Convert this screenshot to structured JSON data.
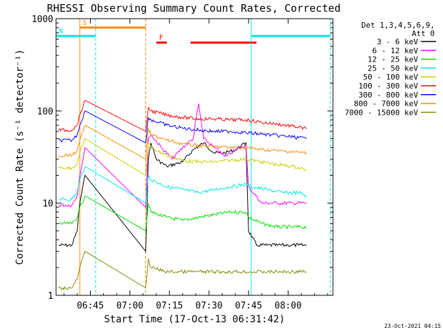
{
  "chart_data": {
    "type": "line",
    "title": "RHESSI Observing Summary Count Rates, Corrected",
    "xlabel": "Start Time (17-Oct-13 06:31:42)",
    "ylabel": "Corrected Count Rate (s⁻¹ detector⁻¹)",
    "yscale": "log",
    "ylim": [
      1,
      1000
    ],
    "xlim_minutes_utc": [
      392,
      497
    ],
    "x_ticks": [
      {
        "label": "06:45",
        "t": 405
      },
      {
        "label": "07:00",
        "t": 420
      },
      {
        "label": "07:15",
        "t": 435
      },
      {
        "label": "07:30",
        "t": 450
      },
      {
        "label": "07:45",
        "t": 465
      },
      {
        "label": "08:00",
        "t": 480
      }
    ],
    "y_ticks": [
      {
        "label": "1",
        "v": 1
      },
      {
        "label": "10",
        "v": 10
      },
      {
        "label": "100",
        "v": 100
      },
      {
        "label": "1000",
        "v": 1000
      }
    ],
    "legend_header": [
      "Det 1,3,4,5,6,9,",
      "Att 0"
    ],
    "series": [
      {
        "name": "3 - 6 keV",
        "color": "#000000",
        "t": [
          393,
          398,
          400,
          401,
          403,
          426,
          427,
          428,
          430,
          434,
          440,
          444,
          448,
          452,
          456,
          460,
          464,
          465,
          468,
          472,
          476,
          480,
          484,
          487
        ],
        "values": [
          3.5,
          3.5,
          5,
          10,
          20,
          3,
          30,
          45,
          30,
          25,
          28,
          38,
          45,
          35,
          35,
          38,
          45,
          5,
          3.5,
          3.5,
          3.5,
          3.5,
          3.5,
          3.5
        ]
      },
      {
        "name": "6 - 12 keV",
        "color": "#ff00ff",
        "t": [
          393,
          398,
          400,
          401,
          403,
          426,
          427,
          428,
          432,
          436,
          440,
          444,
          446,
          448,
          452,
          456,
          460,
          464,
          465,
          470,
          476,
          482,
          487
        ],
        "values": [
          9.5,
          9.5,
          12,
          20,
          40,
          9,
          50,
          55,
          40,
          30,
          40,
          50,
          120,
          50,
          40,
          32,
          38,
          42,
          15,
          10,
          10,
          10,
          10
        ]
      },
      {
        "name": "12 - 25 keV",
        "color": "#00dd00",
        "t": [
          393,
          398,
          400,
          401,
          403,
          426,
          427,
          428,
          434,
          440,
          446,
          452,
          458,
          464,
          465,
          470,
          476,
          482,
          487
        ],
        "values": [
          6,
          6,
          7,
          9,
          12,
          5,
          10,
          8,
          7,
          6.5,
          7,
          7.5,
          8,
          8,
          7,
          6,
          5.5,
          5.5,
          5.5
        ]
      },
      {
        "name": "25 - 50 keV",
        "color": "#00e5e5",
        "t": [
          393,
          398,
          400,
          401,
          403,
          426,
          427,
          428,
          434,
          440,
          446,
          452,
          458,
          464,
          466,
          472,
          478,
          484,
          487
        ],
        "values": [
          11,
          11,
          13,
          18,
          25,
          10,
          20,
          18,
          15,
          14,
          13,
          14,
          15,
          16,
          15,
          14,
          13,
          13,
          12
        ]
      },
      {
        "name": "50 - 100 keV",
        "color": "#cccc00",
        "t": [
          393,
          398,
          400,
          401,
          403,
          426,
          427,
          428,
          434,
          440,
          446,
          452,
          458,
          464,
          470,
          476,
          482,
          487
        ],
        "values": [
          24,
          24,
          27,
          35,
          50,
          20,
          45,
          40,
          33,
          29,
          28,
          28,
          29,
          30,
          28,
          26,
          25,
          23
        ]
      },
      {
        "name": "100 - 300 keV",
        "color": "#ff0000",
        "t": [
          393,
          398,
          400,
          401,
          403,
          426,
          427,
          428,
          434,
          440,
          446,
          452,
          458,
          464,
          470,
          476,
          482,
          487
        ],
        "values": [
          62,
          62,
          70,
          90,
          130,
          60,
          110,
          100,
          90,
          85,
          82,
          82,
          80,
          80,
          75,
          72,
          68,
          64
        ]
      },
      {
        "name": "300 - 800 keV",
        "color": "#0000ff",
        "t": [
          393,
          398,
          400,
          401,
          403,
          426,
          427,
          428,
          434,
          440,
          446,
          452,
          458,
          464,
          470,
          476,
          482,
          487
        ],
        "values": [
          48,
          48,
          55,
          70,
          100,
          45,
          85,
          80,
          70,
          65,
          62,
          60,
          60,
          58,
          56,
          54,
          52,
          50
        ]
      },
      {
        "name": "800 - 7000 keV",
        "color": "#ff8800",
        "t": [
          393,
          398,
          400,
          401,
          403,
          426,
          427,
          428,
          434,
          440,
          446,
          452,
          458,
          464,
          470,
          476,
          482,
          487
        ],
        "values": [
          33,
          33,
          37,
          48,
          70,
          30,
          65,
          55,
          48,
          44,
          42,
          41,
          40,
          40,
          38,
          37,
          36,
          35
        ]
      },
      {
        "name": "7000 - 15000 keV",
        "color": "#888800",
        "t": [
          393,
          398,
          400,
          401,
          403,
          426,
          427,
          428,
          434,
          440,
          446,
          452,
          458,
          464,
          470,
          476,
          482,
          487
        ],
        "values": [
          1.2,
          1.2,
          1.5,
          2,
          3,
          1.2,
          2.5,
          2,
          1.8,
          1.8,
          1.8,
          1.8,
          1.8,
          1.8,
          1.8,
          1.8,
          1.8,
          1.8
        ]
      }
    ],
    "flags": [
      {
        "label": "S",
        "color": "#ff8800",
        "value": 800,
        "segments": [
          [
            401,
            426
          ]
        ]
      },
      {
        "label": "N",
        "color": "#00e5e5",
        "value": 650,
        "segments": [
          [
            392,
            407
          ],
          [
            466,
            496
          ]
        ]
      },
      {
        "label": "F",
        "color": "#ff0000",
        "value": 550,
        "segments": [
          [
            430,
            434
          ],
          [
            443,
            468
          ]
        ]
      }
    ],
    "vlines": [
      {
        "t": 401,
        "color": "#ff8800",
        "style": "solid"
      },
      {
        "t": 392,
        "color": "#00e5e5",
        "style": "solid"
      },
      {
        "t": 407,
        "color": "#00e5e5",
        "style": "dashed"
      },
      {
        "t": 426,
        "color": "#ff8800",
        "style": "dashed"
      },
      {
        "t": 466,
        "color": "#00e5e5",
        "style": "solid"
      },
      {
        "t": 496,
        "color": "#00e5e5",
        "style": "dashed"
      }
    ],
    "footer": "23-Oct-2021 04:15"
  }
}
